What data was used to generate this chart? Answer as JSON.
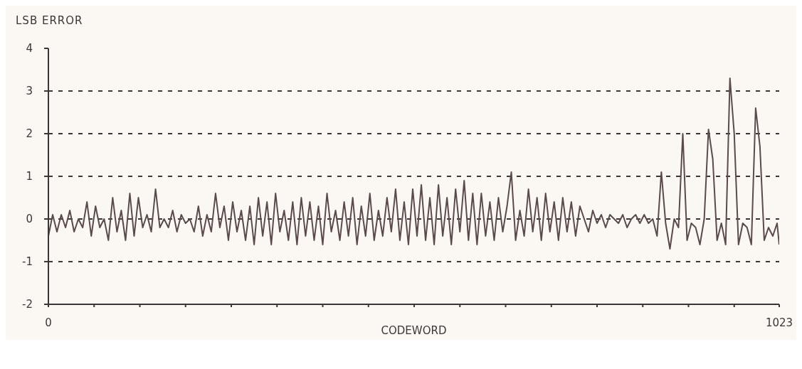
{
  "chart_data": {
    "type": "line",
    "ylabel": "LSB ERROR",
    "xlabel": "CODEWORD",
    "x": [
      0,
      6,
      12,
      18,
      24,
      30,
      36,
      42,
      48,
      54,
      60,
      66,
      72,
      78,
      84,
      90,
      96,
      102,
      108,
      114,
      120,
      126,
      132,
      138,
      144,
      150,
      156,
      162,
      168,
      174,
      180,
      186,
      192,
      198,
      204,
      210,
      216,
      222,
      228,
      234,
      240,
      246,
      252,
      258,
      264,
      270,
      276,
      282,
      288,
      294,
      300,
      306,
      312,
      318,
      324,
      330,
      336,
      342,
      348,
      354,
      360,
      366,
      372,
      378,
      384,
      390,
      396,
      402,
      408,
      414,
      420,
      426,
      432,
      438,
      444,
      450,
      456,
      462,
      468,
      474,
      480,
      486,
      492,
      498,
      504,
      510,
      516,
      522,
      528,
      534,
      540,
      546,
      552,
      558,
      564,
      570,
      576,
      582,
      588,
      594,
      600,
      606,
      612,
      618,
      624,
      630,
      636,
      642,
      648,
      654,
      660,
      666,
      672,
      678,
      684,
      690,
      696,
      702,
      708,
      714,
      720,
      726,
      732,
      738,
      744,
      750,
      756,
      762,
      768,
      774,
      780,
      786,
      792,
      798,
      804,
      810,
      816,
      822,
      828,
      834,
      840,
      846,
      852,
      858,
      864,
      870,
      876,
      882,
      888,
      894,
      900,
      906,
      912,
      918,
      924,
      930,
      936,
      942,
      948,
      954,
      960,
      966,
      972,
      978,
      984,
      990,
      996,
      1002,
      1008,
      1014,
      1020,
      1023
    ],
    "values": [
      -0.4,
      0.1,
      -0.3,
      0.1,
      -0.2,
      0.2,
      -0.3,
      0.0,
      -0.2,
      0.4,
      -0.4,
      0.3,
      -0.2,
      0.0,
      -0.5,
      0.5,
      -0.3,
      0.2,
      -0.5,
      0.6,
      -0.4,
      0.5,
      -0.2,
      0.1,
      -0.3,
      0.7,
      -0.2,
      0.0,
      -0.2,
      0.2,
      -0.3,
      0.1,
      -0.1,
      0.0,
      -0.3,
      0.3,
      -0.4,
      0.1,
      -0.3,
      0.6,
      -0.2,
      0.3,
      -0.5,
      0.4,
      -0.3,
      0.2,
      -0.5,
      0.3,
      -0.6,
      0.5,
      -0.4,
      0.4,
      -0.6,
      0.6,
      -0.3,
      0.2,
      -0.5,
      0.4,
      -0.6,
      0.5,
      -0.4,
      0.4,
      -0.5,
      0.3,
      -0.6,
      0.6,
      -0.3,
      0.2,
      -0.5,
      0.4,
      -0.4,
      0.5,
      -0.6,
      0.3,
      -0.4,
      0.6,
      -0.5,
      0.2,
      -0.4,
      0.5,
      -0.3,
      0.7,
      -0.5,
      0.4,
      -0.6,
      0.7,
      -0.4,
      0.8,
      -0.5,
      0.5,
      -0.6,
      0.8,
      -0.4,
      0.5,
      -0.6,
      0.7,
      -0.3,
      0.9,
      -0.5,
      0.6,
      -0.6,
      0.6,
      -0.4,
      0.4,
      -0.5,
      0.5,
      -0.3,
      0.3,
      1.1,
      -0.5,
      0.2,
      -0.4,
      0.7,
      -0.3,
      0.5,
      -0.5,
      0.6,
      -0.3,
      0.4,
      -0.5,
      0.5,
      -0.3,
      0.4,
      -0.4,
      0.3,
      0.0,
      -0.3,
      0.2,
      -0.1,
      0.1,
      -0.2,
      0.1,
      0.0,
      -0.1,
      0.1,
      -0.2,
      0.0,
      0.1,
      -0.1,
      0.1,
      -0.1,
      0.0,
      -0.4,
      1.1,
      -0.1,
      -0.7,
      0.0,
      -0.2,
      2.0,
      -0.5,
      -0.1,
      -0.2,
      -0.6,
      0.0,
      2.1,
      1.4,
      -0.5,
      -0.1,
      -0.6,
      3.3,
      2.0,
      -0.6,
      -0.1,
      -0.2,
      -0.6,
      2.6,
      1.7,
      -0.5,
      -0.2,
      -0.4,
      -0.1,
      -0.6
    ],
    "color": "#5a4a4c",
    "xlim": [
      0,
      1023
    ],
    "xticks": [
      0,
      {
        "value": 64,
        "label": null
      },
      {
        "value": 128,
        "label": null
      },
      {
        "value": 192,
        "label": null
      },
      {
        "value": 256,
        "label": null
      },
      {
        "value": 320,
        "label": null
      },
      {
        "value": 384,
        "label": null
      },
      {
        "value": 448,
        "label": null
      },
      {
        "value": 512,
        "label": null
      },
      {
        "value": 576,
        "label": null
      },
      {
        "value": 640,
        "label": null
      },
      {
        "value": 704,
        "label": null
      },
      {
        "value": 768,
        "label": null
      },
      {
        "value": 832,
        "label": null
      },
      {
        "value": 896,
        "label": null
      },
      {
        "value": 960,
        "label": null
      },
      1023
    ],
    "ylim": [
      -2,
      4
    ],
    "yticks": [
      -2,
      -1,
      0,
      1,
      2,
      3,
      4
    ],
    "grid": "y",
    "line_style": "solid"
  }
}
